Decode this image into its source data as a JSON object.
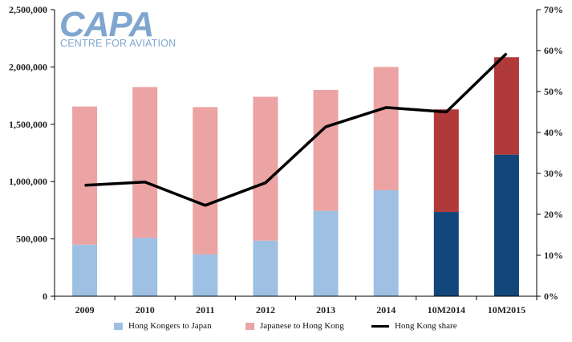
{
  "logo": {
    "name": "CAPA",
    "tagline": "CENTRE FOR AVIATION",
    "color": "#7fa6cf"
  },
  "chart_data": {
    "type": "bar",
    "stacked": true,
    "categories": [
      "2009",
      "2010",
      "2011",
      "2012",
      "2013",
      "2014",
      "10M2014",
      "10M2015"
    ],
    "series": [
      {
        "name": "Hong Kongers to Japan",
        "type": "bar",
        "axis": "left",
        "values": [
          450000,
          510000,
          365000,
          485000,
          745000,
          925000,
          735000,
          1235000
        ],
        "color": "#9ec0e3",
        "highlight_color": "#13467a"
      },
      {
        "name": "Japanese to Hong Kong",
        "type": "bar",
        "axis": "left",
        "values": [
          1205000,
          1315000,
          1285000,
          1255000,
          1055000,
          1075000,
          895000,
          850000
        ],
        "color": "#eba3a3",
        "highlight_color": "#b03a3a"
      },
      {
        "name": "Hong Kong share",
        "type": "line",
        "axis": "right",
        "values": [
          27.1,
          27.9,
          22.2,
          27.7,
          41.4,
          46.1,
          45.0,
          59.3
        ],
        "color": "#000000"
      }
    ],
    "highlight_categories": [
      "10M2014",
      "10M2015"
    ],
    "y_left": {
      "ylim": [
        0,
        2500000
      ],
      "ticks": [
        "0",
        "500,000",
        "1,000,000",
        "1,500,000",
        "2,000,000",
        "2,500,000"
      ]
    },
    "y_right": {
      "ylim": [
        0,
        70
      ],
      "ticks": [
        "0%",
        "10%",
        "20%",
        "30%",
        "40%",
        "50%",
        "60%",
        "70%"
      ]
    },
    "grid": false,
    "legend": "bottom"
  }
}
